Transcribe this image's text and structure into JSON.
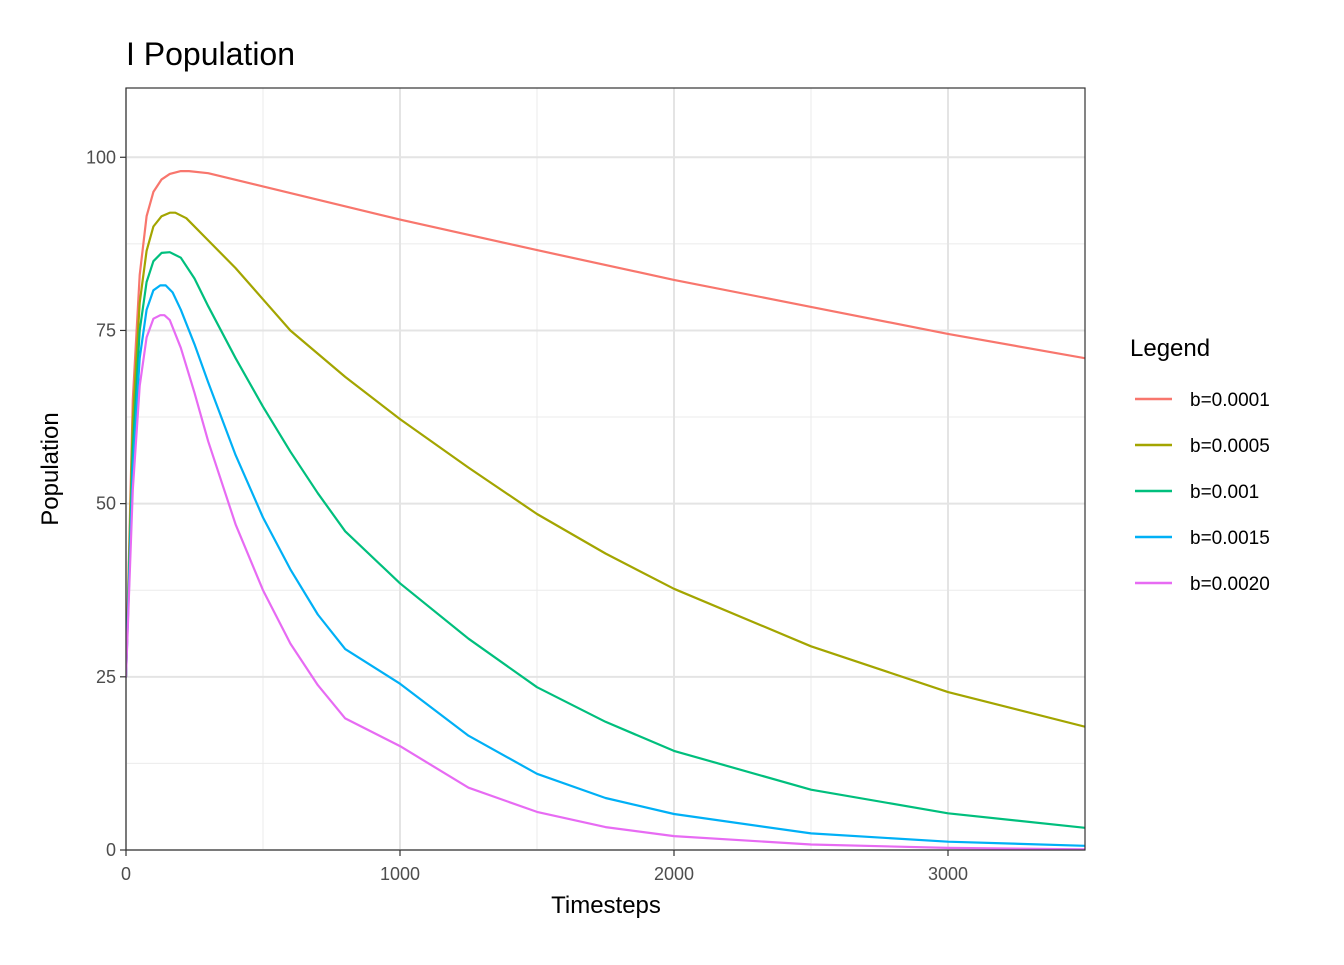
{
  "chart_data": {
    "type": "line",
    "title": "I Population",
    "xlabel": "Timesteps",
    "ylabel": "Population",
    "xlim": [
      0,
      3500
    ],
    "ylim": [
      0,
      110
    ],
    "x_ticks": [
      0,
      1000,
      2000,
      3000
    ],
    "x_tick_labels": [
      "0",
      "1000",
      "2000",
      "3000"
    ],
    "y_ticks": [
      0,
      25,
      50,
      75,
      100
    ],
    "y_tick_labels": [
      "0",
      "25",
      "50",
      "75",
      "100"
    ],
    "x_minor_ticks": [
      500,
      1500,
      2500
    ],
    "y_minor_ticks": [
      12.5,
      37.5,
      62.5,
      87.5
    ],
    "grid": true,
    "legend": {
      "title": "Legend",
      "placement": "right"
    },
    "series": [
      {
        "name": "b=0.0001",
        "color": "#F8766D",
        "x": [
          0,
          25,
          50,
          75,
          100,
          130,
          160,
          200,
          230,
          300,
          500,
          1000,
          1500,
          2000,
          2500,
          3000,
          3500
        ],
        "y": [
          25,
          65,
          83,
          91.5,
          95,
          96.8,
          97.6,
          98,
          98,
          97.7,
          95.8,
          91,
          86.6,
          82.3,
          78.4,
          74.5,
          71
        ]
      },
      {
        "name": "b=0.0005",
        "color": "#A3A500",
        "x": [
          0,
          25,
          50,
          75,
          100,
          130,
          160,
          180,
          220,
          300,
          400,
          500,
          600,
          800,
          1000,
          1250,
          1500,
          1750,
          2000,
          2500,
          3000,
          3500
        ],
        "y": [
          25,
          62,
          79,
          86.5,
          90,
          91.5,
          92,
          92,
          91.2,
          88,
          84,
          79.5,
          75,
          68.3,
          62.2,
          55.2,
          48.5,
          42.8,
          37.7,
          29.4,
          22.8,
          17.8
        ]
      },
      {
        "name": "b=0.001",
        "color": "#00BF7D",
        "x": [
          0,
          25,
          50,
          75,
          100,
          130,
          160,
          200,
          250,
          300,
          400,
          500,
          600,
          700,
          800,
          1000,
          1250,
          1500,
          1750,
          2000,
          2500,
          3000,
          3500
        ],
        "y": [
          25,
          58,
          75,
          82,
          85,
          86.2,
          86.3,
          85.5,
          82.5,
          78.5,
          71,
          64,
          57.5,
          51.5,
          46,
          38.5,
          30.5,
          23.5,
          18.5,
          14.3,
          8.7,
          5.3,
          3.2
        ]
      },
      {
        "name": "b=0.0015",
        "color": "#00B0F6",
        "x": [
          0,
          25,
          50,
          75,
          100,
          125,
          145,
          170,
          200,
          250,
          300,
          400,
          500,
          600,
          700,
          800,
          1000,
          1250,
          1500,
          1750,
          2000,
          2500,
          3000,
          3500
        ],
        "y": [
          25,
          55,
          71,
          78,
          80.8,
          81.5,
          81.5,
          80.5,
          78,
          73,
          67.5,
          57,
          48,
          40.5,
          34,
          29,
          24,
          16.5,
          11,
          7.5,
          5.2,
          2.4,
          1.2,
          0.6
        ]
      },
      {
        "name": "b=0.0020",
        "color": "#E76BF3",
        "x": [
          0,
          25,
          50,
          75,
          100,
          125,
          140,
          160,
          200,
          250,
          300,
          400,
          500,
          600,
          700,
          800,
          1000,
          1250,
          1500,
          1750,
          2000,
          2500,
          3000,
          3500
        ],
        "y": [
          25,
          52,
          67,
          74,
          76.7,
          77.2,
          77.2,
          76.5,
          72.5,
          66,
          59,
          47,
          37.5,
          29.8,
          23.8,
          19,
          15,
          9,
          5.5,
          3.3,
          2,
          0.8,
          0.3,
          0.1
        ]
      }
    ]
  }
}
